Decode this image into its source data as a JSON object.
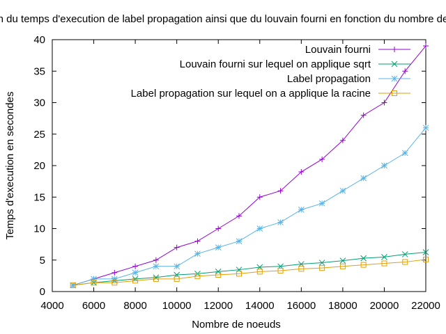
{
  "chart_data": {
    "type": "line",
    "title": "Evolution du temps d'execution de label propagation ainsi que du louvain fourni en fonction du nombre de noeuds",
    "xlabel": "Nombre de noeuds",
    "ylabel": "Temps d'execution en secondes",
    "xlim": [
      4000,
      22000
    ],
    "ylim": [
      0,
      40
    ],
    "xticks": [
      4000,
      6000,
      8000,
      10000,
      12000,
      14000,
      16000,
      18000,
      20000,
      22000
    ],
    "yticks": [
      0,
      5,
      10,
      15,
      20,
      25,
      30,
      35,
      40
    ],
    "legend_position": "top-right",
    "grid": false,
    "x": [
      5000,
      6000,
      7000,
      8000,
      9000,
      10000,
      11000,
      12000,
      13000,
      14000,
      15000,
      16000,
      17000,
      18000,
      19000,
      20000,
      21000,
      22000
    ],
    "series": [
      {
        "name": "Louvain fourni",
        "color": "#9400d3",
        "marker": "plus",
        "values": [
          1,
          2,
          3,
          4,
          5,
          7,
          8,
          10,
          12,
          15,
          16,
          19,
          21,
          24,
          28,
          30,
          35,
          39
        ]
      },
      {
        "name": "Louvain fourni sur lequel on applique sqrt",
        "color": "#009e73",
        "marker": "cross",
        "values": [
          1,
          1.41,
          1.73,
          2,
          2.24,
          2.65,
          2.83,
          3.16,
          3.46,
          3.87,
          4,
          4.36,
          4.58,
          4.9,
          5.29,
          5.48,
          5.92,
          6.24
        ]
      },
      {
        "name": "Label propagation",
        "color": "#56b4e9",
        "marker": "star",
        "values": [
          1,
          2,
          2,
          3,
          4,
          4,
          6,
          7,
          8,
          10,
          11,
          13,
          14,
          16,
          18,
          20,
          22,
          26
        ]
      },
      {
        "name": "Label propagation sur lequel on a applique la racine",
        "color": "#e69f00",
        "marker": "square",
        "values": [
          1,
          1.41,
          1.41,
          1.73,
          2,
          2,
          2.45,
          2.65,
          2.83,
          3.16,
          3.32,
          3.61,
          3.74,
          4,
          4.24,
          4.47,
          4.69,
          5.1
        ]
      }
    ]
  }
}
